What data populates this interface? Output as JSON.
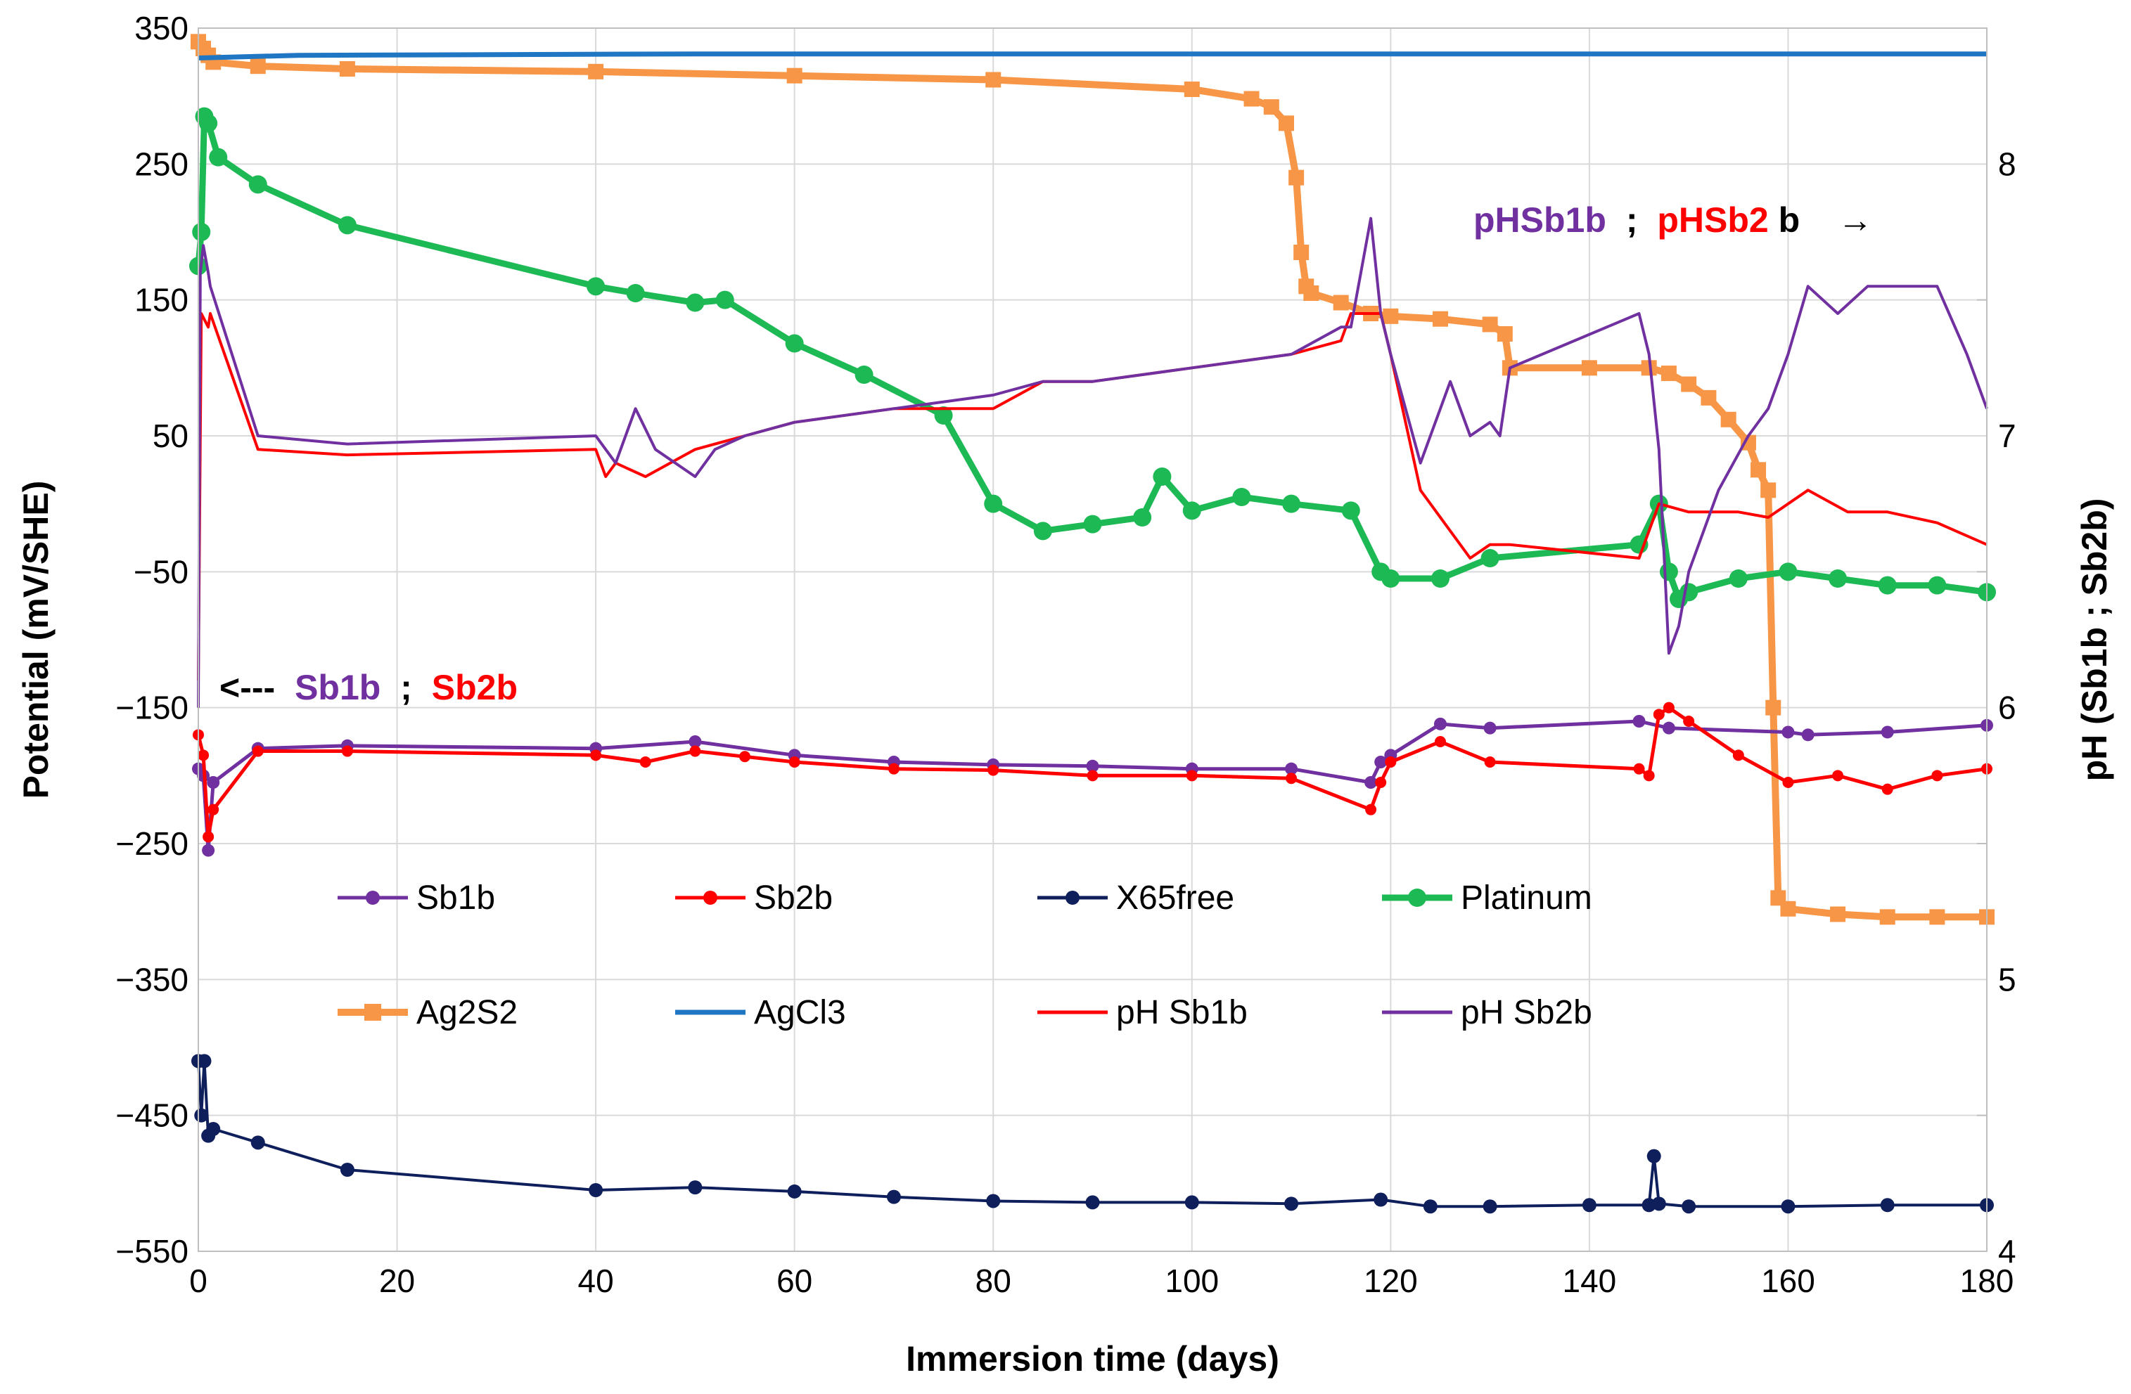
{
  "chart_data": {
    "type": "line",
    "title": "",
    "xlabel": "Immersion time (days)",
    "ylabel": "Potential (mV/SHE)",
    "y2label": "pH (Sb1b ; Sb2b)",
    "xlim": [
      0,
      180
    ],
    "ylim": [
      -550,
      350
    ],
    "y2lim": [
      4,
      8.5
    ],
    "xticks": [
      0,
      20,
      40,
      60,
      80,
      100,
      120,
      140,
      160,
      180
    ],
    "yticks": [
      -550,
      -450,
      -350,
      -250,
      -150,
      -50,
      50,
      150,
      250,
      350
    ],
    "y2ticks": [
      4,
      5,
      6,
      7,
      8
    ],
    "grid": true,
    "legend_position": "inside-lower-center",
    "annotations": {
      "left_arrow": "<---",
      "left_sb1b": "Sb1b",
      "left_sep": ";",
      "left_sb2b": "Sb2b",
      "right_psb1b": "pHSb1b",
      "right_sep": ";",
      "right_psb2": "pHSb2",
      "right_b": "b",
      "right_arrow": "→"
    },
    "colors": {
      "Sb1b": "#7030a0",
      "Sb2b": "#ff0000",
      "X65free": "#0f1f5c",
      "Platinum": "#1db954",
      "Ag2S2": "#f79646",
      "AgCl3": "#1f77c4",
      "pH Sb1b": "#ff0000",
      "pH Sb2b": "#7030a0"
    },
    "series": [
      {
        "name": "Ag2S2",
        "axis": "left",
        "x": [
          0,
          0.5,
          1,
          1.5,
          6,
          15,
          40,
          60,
          80,
          100,
          106,
          108,
          109.5,
          110.5,
          111,
          111.5,
          112,
          115,
          118,
          120,
          125,
          130,
          131.5,
          132,
          140,
          146,
          148,
          150,
          152,
          154,
          156,
          157,
          158,
          158.5,
          159,
          160,
          165,
          170,
          175,
          180
        ],
        "y": [
          340,
          335,
          330,
          325,
          322,
          320,
          318,
          315,
          312,
          305,
          298,
          292,
          280,
          240,
          185,
          160,
          155,
          148,
          140,
          138,
          136,
          132,
          125,
          100,
          100,
          100,
          96,
          88,
          78,
          62,
          45,
          25,
          10,
          -150,
          -290,
          -298,
          -302,
          -304,
          -304,
          -304
        ]
      },
      {
        "name": "AgCl3",
        "axis": "left",
        "x": [
          0,
          10,
          50,
          100,
          140,
          180
        ],
        "y": [
          328,
          330,
          331,
          331,
          331,
          331
        ]
      },
      {
        "name": "Platinum",
        "axis": "left",
        "x": [
          0,
          0.3,
          0.6,
          1,
          2,
          6,
          15,
          40,
          44,
          50,
          53,
          60,
          67,
          75,
          80,
          85,
          90,
          95,
          97,
          100,
          105,
          110,
          116,
          119,
          120,
          125,
          130,
          145,
          147,
          148,
          149,
          150,
          155,
          160,
          165,
          170,
          175,
          180
        ],
        "y": [
          175,
          200,
          285,
          280,
          255,
          235,
          205,
          160,
          155,
          148,
          150,
          118,
          95,
          65,
          0,
          -20,
          -15,
          -10,
          20,
          -5,
          5,
          0,
          -5,
          -50,
          -55,
          -55,
          -40,
          -30,
          0,
          -50,
          -70,
          -65,
          -55,
          -50,
          -55,
          -60,
          -60,
          -65
        ]
      },
      {
        "name": "Sb1b",
        "axis": "left",
        "x": [
          0,
          0.5,
          1,
          1.5,
          6,
          15,
          40,
          50,
          60,
          70,
          80,
          90,
          100,
          110,
          118,
          119,
          120,
          125,
          130,
          145,
          148,
          160,
          162,
          170,
          180
        ],
        "y": [
          -195,
          -200,
          -255,
          -205,
          -180,
          -178,
          -180,
          -175,
          -185,
          -190,
          -192,
          -193,
          -195,
          -195,
          -205,
          -190,
          -185,
          -162,
          -165,
          -160,
          -165,
          -168,
          -170,
          -168,
          -163
        ]
      },
      {
        "name": "Sb2b",
        "axis": "left",
        "x": [
          0,
          0.5,
          1,
          1.5,
          6,
          15,
          40,
          45,
          50,
          55,
          60,
          70,
          80,
          90,
          100,
          110,
          118,
          119,
          120,
          125,
          130,
          145,
          146,
          147,
          148,
          150,
          155,
          160,
          165,
          170,
          175,
          180
        ],
        "y": [
          -170,
          -185,
          -245,
          -225,
          -182,
          -182,
          -185,
          -190,
          -182,
          -186,
          -190,
          -195,
          -196,
          -200,
          -200,
          -202,
          -225,
          -205,
          -190,
          -175,
          -190,
          -195,
          -200,
          -155,
          -150,
          -160,
          -185,
          -205,
          -200,
          -210,
          -200,
          -195
        ]
      },
      {
        "name": "X65free",
        "axis": "left",
        "x": [
          0,
          0.3,
          0.6,
          1,
          1.5,
          6,
          15,
          40,
          50,
          60,
          70,
          80,
          90,
          100,
          110,
          119,
          124,
          130,
          140,
          146,
          146.5,
          147,
          150,
          160,
          170,
          180
        ],
        "y": [
          -410,
          -450,
          -410,
          -465,
          -460,
          -470,
          -490,
          -505,
          -503,
          -506,
          -510,
          -513,
          -514,
          -514,
          -515,
          -512,
          -517,
          -517,
          -516,
          -516,
          -480,
          -515,
          -517,
          -517,
          -516,
          -516
        ]
      },
      {
        "name": "pH Sb1b",
        "axis": "right",
        "x": [
          0,
          0.3,
          1,
          1.2,
          6,
          15,
          40,
          41,
          42,
          45,
          50,
          55,
          60,
          70,
          75,
          80,
          85,
          90,
          100,
          110,
          115,
          116,
          119,
          120,
          123,
          126,
          128,
          130,
          132,
          145,
          147,
          150,
          155,
          158,
          160,
          162,
          166,
          170,
          175,
          180
        ],
        "y": [
          6.1,
          7.45,
          7.4,
          7.45,
          6.95,
          6.93,
          6.95,
          6.85,
          6.9,
          6.85,
          6.95,
          7.0,
          7.05,
          7.1,
          7.1,
          7.1,
          7.2,
          7.2,
          7.25,
          7.3,
          7.35,
          7.45,
          7.45,
          7.3,
          6.8,
          6.65,
          6.55,
          6.6,
          6.6,
          6.55,
          6.75,
          6.72,
          6.72,
          6.7,
          6.75,
          6.8,
          6.72,
          6.72,
          6.68,
          6.6
        ]
      },
      {
        "name": "pH Sb2b",
        "axis": "right",
        "x": [
          0,
          0.2,
          0.5,
          1,
          1.2,
          6,
          15,
          40,
          42,
          44,
          46,
          50,
          52,
          55,
          60,
          70,
          80,
          85,
          90,
          100,
          110,
          115,
          116,
          118,
          119,
          120,
          123,
          126,
          128,
          130,
          131,
          132,
          145,
          146,
          147,
          148,
          149,
          150,
          153,
          156,
          158,
          160,
          162,
          165,
          168,
          172,
          175,
          178,
          180
        ],
        "y": [
          6.0,
          7.6,
          7.7,
          7.6,
          7.55,
          7.0,
          6.97,
          7.0,
          6.9,
          7.1,
          6.95,
          6.85,
          6.95,
          7.0,
          7.05,
          7.1,
          7.15,
          7.2,
          7.2,
          7.25,
          7.3,
          7.4,
          7.4,
          7.8,
          7.45,
          7.3,
          6.9,
          7.2,
          7.0,
          7.05,
          7.0,
          7.25,
          7.45,
          7.3,
          6.95,
          6.2,
          6.3,
          6.5,
          6.8,
          7.0,
          7.1,
          7.3,
          7.55,
          7.45,
          7.55,
          7.55,
          7.55,
          7.3,
          7.1
        ]
      }
    ],
    "legend": [
      {
        "label": "Sb1b",
        "series": "Sb1b"
      },
      {
        "label": "Sb2b",
        "series": "Sb2b"
      },
      {
        "label": "X65free",
        "series": "X65free"
      },
      {
        "label": "Platinum",
        "series": "Platinum"
      },
      {
        "label": "Ag2S2",
        "series": "Ag2S2"
      },
      {
        "label": "AgCl3",
        "series": "AgCl3"
      },
      {
        "label": "pH Sb1b",
        "series": "pH Sb1b"
      },
      {
        "label": "pH Sb2b",
        "series": "pH Sb2b"
      }
    ]
  }
}
